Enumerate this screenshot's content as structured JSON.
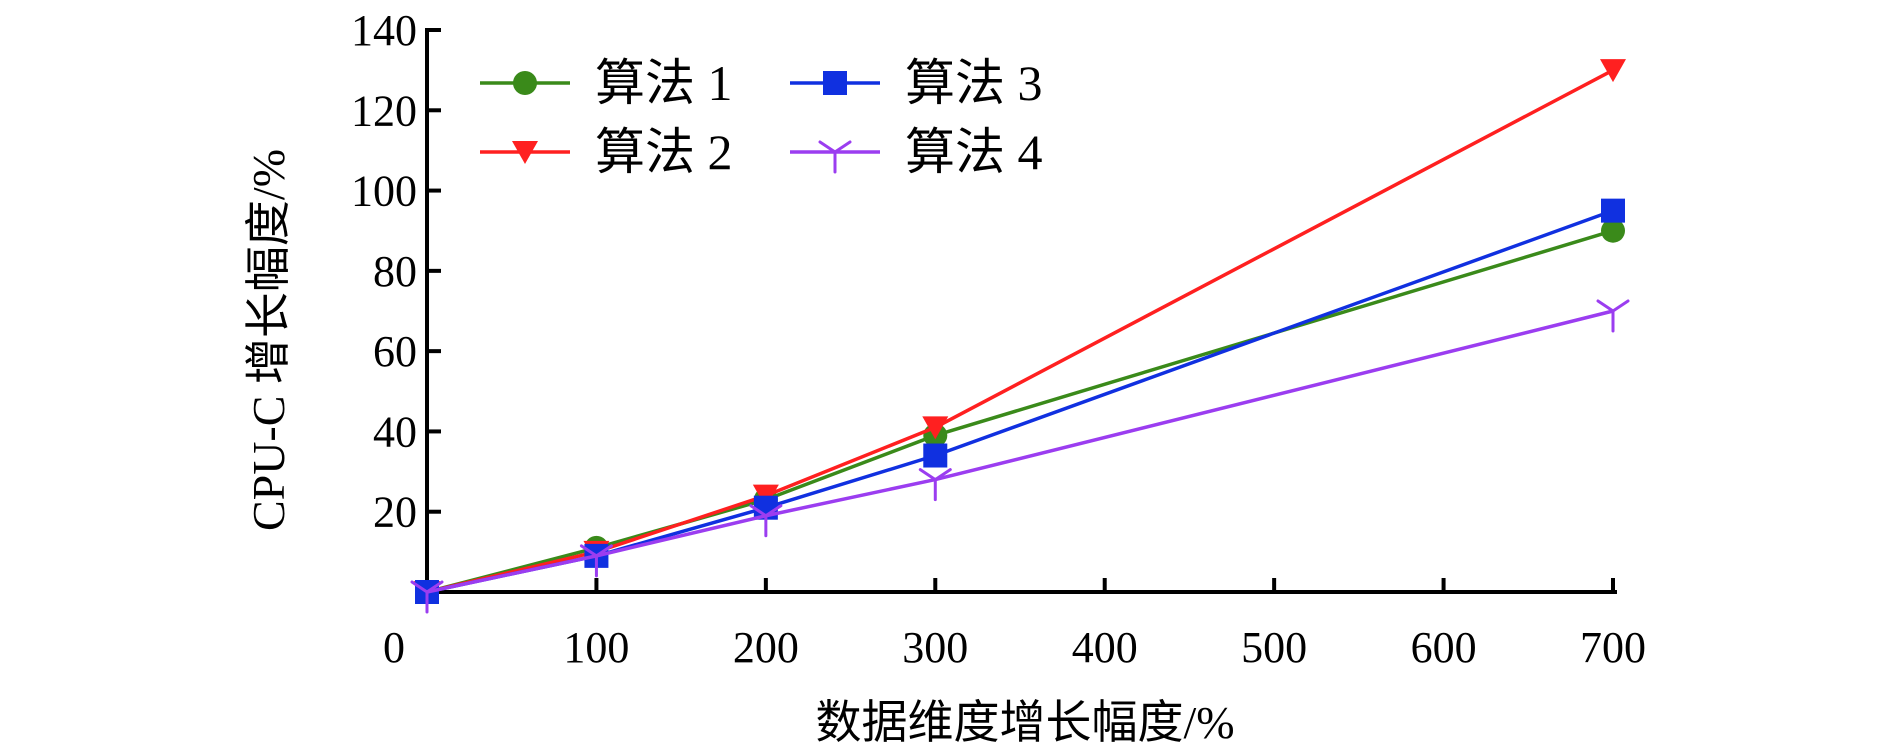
{
  "chart_data": {
    "type": "line",
    "title": "",
    "xlabel": "数据维度增长幅度/%",
    "ylabel": "CPU-C 增长幅度/%",
    "x": [
      0,
      100,
      200,
      300,
      700
    ],
    "x_tick_labels": [
      "0",
      "100",
      "200",
      "300",
      "400",
      "500",
      "600",
      "700"
    ],
    "x_tick_positions": [
      0,
      1,
      2,
      3,
      4,
      5,
      6,
      7
    ],
    "y_tick_labels": [
      "20",
      "40",
      "60",
      "80",
      "100",
      "120",
      "140"
    ],
    "y_tick_values": [
      20,
      40,
      60,
      80,
      100,
      120,
      140
    ],
    "ylim": [
      0,
      140
    ],
    "grid": false,
    "legend_position": "top-left",
    "series": [
      {
        "name": "算法 1",
        "marker": "circle",
        "color": "#3a8a1a",
        "values": [
          0,
          11,
          23,
          39,
          90
        ]
      },
      {
        "name": "算法 2",
        "marker": "triangle-down",
        "color": "#ff2020",
        "values": [
          0,
          10,
          24,
          41,
          130
        ]
      },
      {
        "name": "算法 3",
        "marker": "square",
        "color": "#1030e0",
        "values": [
          0,
          9,
          21,
          34,
          95
        ]
      },
      {
        "name": "算法 4",
        "marker": "tri-star",
        "color": "#9b3df0",
        "values": [
          0,
          9,
          19,
          28,
          70
        ]
      }
    ]
  }
}
